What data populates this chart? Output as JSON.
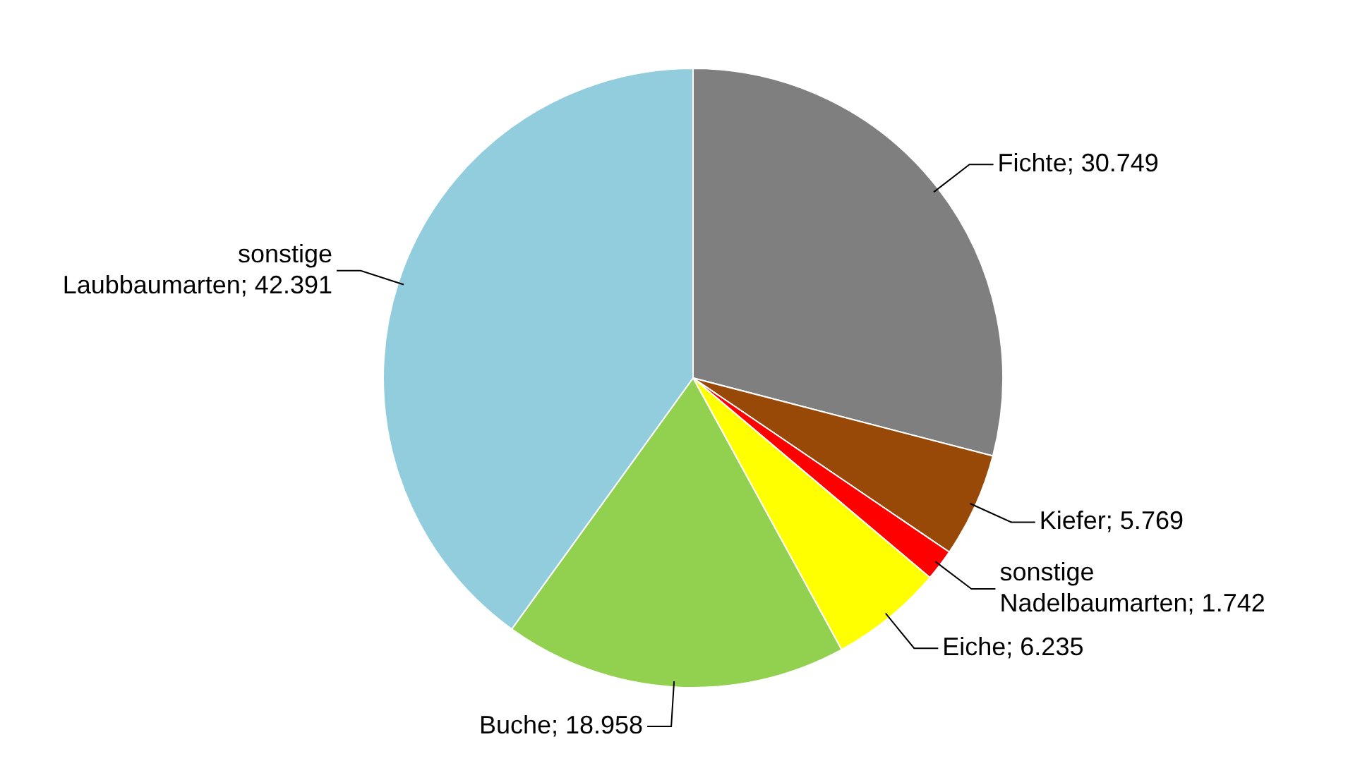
{
  "chart_data": {
    "type": "pie",
    "categories": [
      "Fichte",
      "Kiefer",
      "sonstige Nadelbaumarten",
      "Eiche",
      "Buche",
      "sonstige Laubbaumarten"
    ],
    "values": [
      30749,
      5769,
      1742,
      6235,
      18958,
      42391
    ],
    "colors": [
      "#7f7f7f",
      "#984807",
      "#ff0000",
      "#ffff00",
      "#92d050",
      "#92cddd"
    ],
    "value_labels": [
      "30.749",
      "5.769",
      "1.742",
      "6.235",
      "18.958",
      "42.391"
    ],
    "legend": false
  }
}
